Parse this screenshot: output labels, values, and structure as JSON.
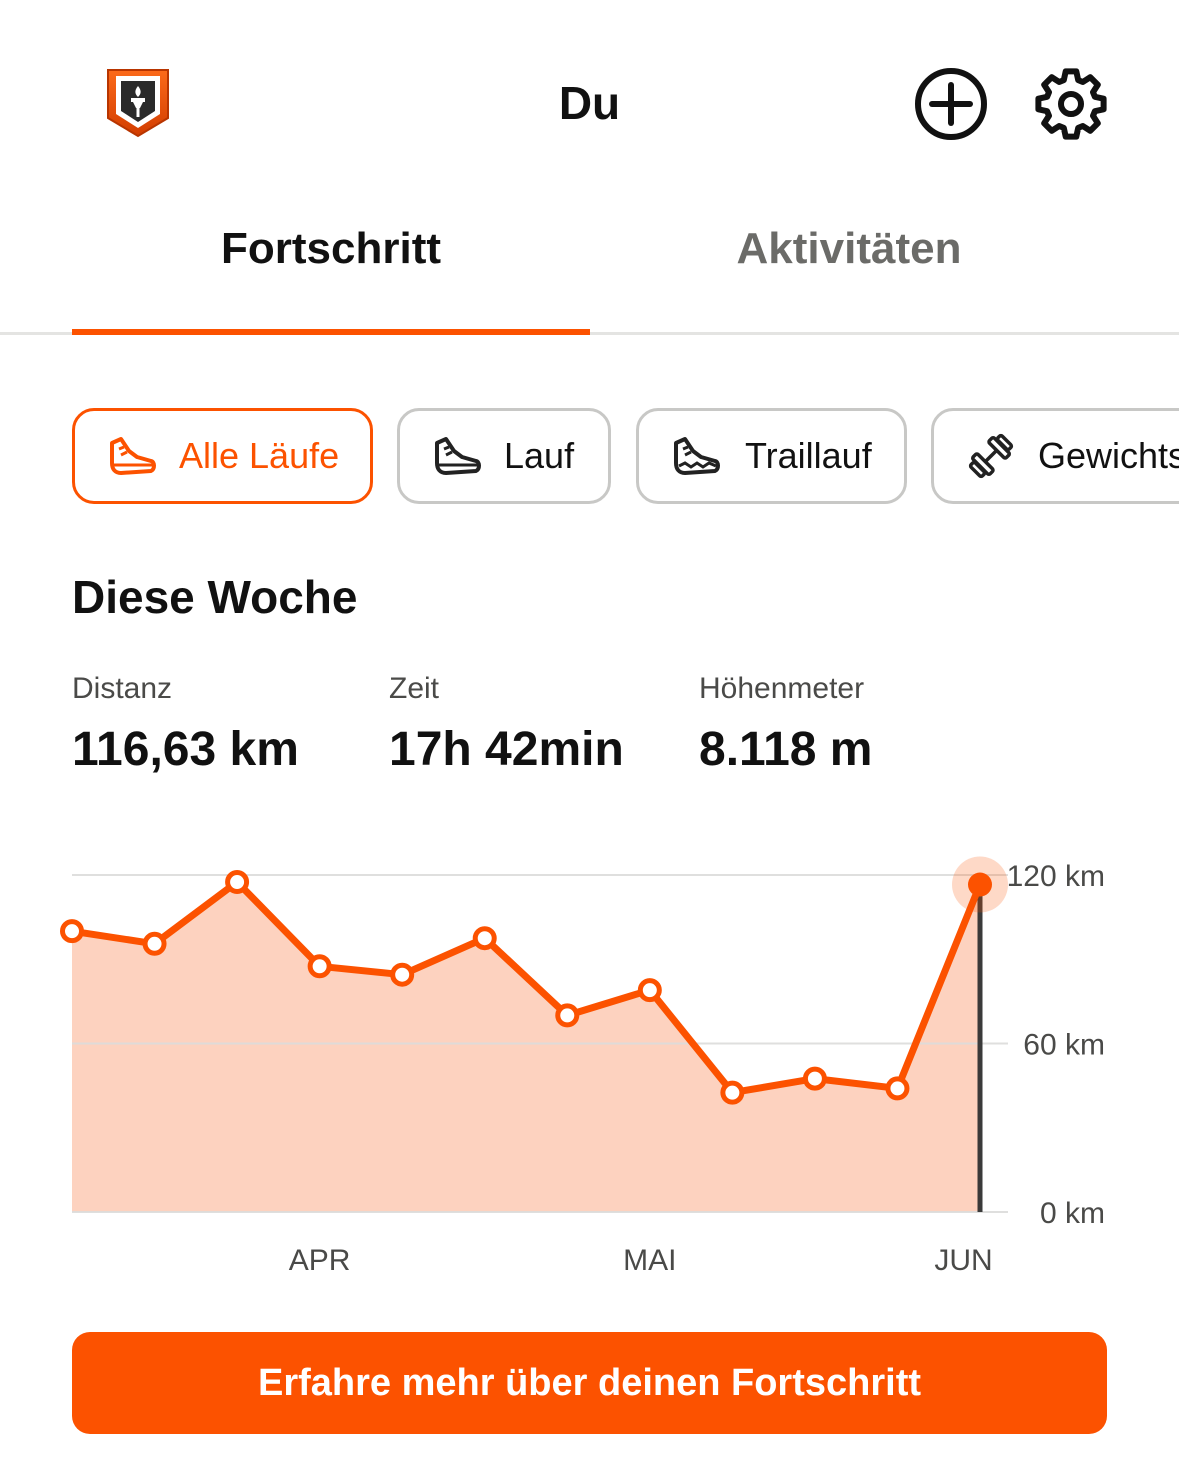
{
  "header": {
    "title": "Du",
    "icons": {
      "badge": "torch-shield-icon",
      "add": "plus-circle-icon",
      "settings": "gear-icon"
    }
  },
  "tabs": [
    {
      "label": "Fortschritt",
      "active": true
    },
    {
      "label": "Aktivitäten",
      "active": false
    }
  ],
  "filters": [
    {
      "label": "Alle Läufe",
      "icon": "running-shoe-icon",
      "active": true
    },
    {
      "label": "Lauf",
      "icon": "running-shoe-icon",
      "active": false
    },
    {
      "label": "Traillauf",
      "icon": "trail-shoe-icon",
      "active": false
    },
    {
      "label": "Gewichts",
      "icon": "dumbbell-icon",
      "active": false
    }
  ],
  "week": {
    "title": "Diese Woche",
    "stats": [
      {
        "label": "Distanz",
        "value": "116,63 km"
      },
      {
        "label": "Zeit",
        "value": "17h 42min"
      },
      {
        "label": "Höhenmeter",
        "value": "8.118 m"
      }
    ]
  },
  "chart_data": {
    "type": "area",
    "x_labels": [
      "APR",
      "MAI",
      "JUN"
    ],
    "y_ticks": [
      "0 km",
      "60 km",
      "120 km"
    ],
    "ylim": [
      0,
      120
    ],
    "values": [
      100,
      95.5,
      117.5,
      87.5,
      84.5,
      97.5,
      70,
      79,
      42.5,
      47.5,
      44,
      116.6
    ],
    "highlight_index": 11,
    "colors": {
      "line": "#fc5200",
      "fill": "#fdd2bf",
      "grid": "#dcdcda"
    }
  },
  "cta": {
    "label": "Erfahre mehr über deinen Fortschritt"
  }
}
